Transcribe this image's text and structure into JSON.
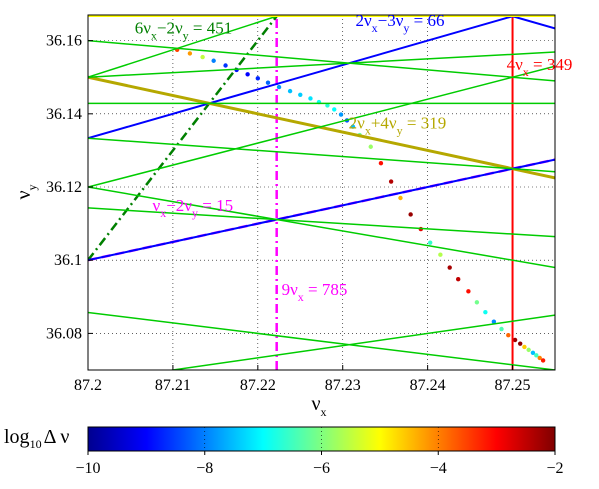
{
  "chart_data": {
    "type": "scatter",
    "xlim": [
      87.2,
      87.255
    ],
    "ylim": [
      36.07,
      36.167
    ],
    "x_ticks": [
      "87.2",
      "87.21",
      "87.22",
      "87.23",
      "87.24",
      "87.25"
    ],
    "y_ticks": [
      "36.08",
      "36.1",
      "36.12",
      "36.14",
      "36.16"
    ],
    "x_tick_values": [
      87.2,
      87.21,
      87.22,
      87.23,
      87.24,
      87.25
    ],
    "y_tick_values": [
      36.08,
      36.1,
      36.12,
      36.14,
      36.16
    ],
    "xlabel": {
      "main": "ν",
      "sub": "x"
    },
    "ylabel": {
      "main": "ν",
      "sub": "y"
    },
    "grid": true,
    "colorbar": {
      "label_pre": "log",
      "label_sub": "10",
      "label_post": "Δ ν",
      "ticks": [
        "−10",
        "−8",
        "−6",
        "−4",
        "−2"
      ],
      "tick_values": [
        -10,
        -8,
        -6,
        -4,
        -2
      ],
      "range": [
        -10,
        -2
      ],
      "colormap": "jet"
    },
    "resonance_lines": [
      {
        "a": 4,
        "b": 0,
        "c": 349,
        "color": "#ff0000",
        "style": "solid",
        "width": 2
      },
      {
        "a": 9,
        "b": 0,
        "c": 785,
        "color": "#ff00ff",
        "style": "dashdot",
        "width": 2.5
      },
      {
        "a": 1,
        "b": -2,
        "c": 15,
        "color": "#ff00ff",
        "style": "dashed",
        "width": 2.5
      },
      {
        "a": 6,
        "b": -2,
        "c": 451,
        "color": "#007f00",
        "style": "dashdot",
        "width": 2.5
      },
      {
        "a": 2,
        "b": -3,
        "c": 66,
        "color": "#0000ff",
        "style": "solid",
        "width": 2
      },
      {
        "a": 2,
        "b": 4,
        "c": 319,
        "color": "#b5a800",
        "style": "solid",
        "width": 3
      },
      {
        "a": 2,
        "b": -4,
        "c": 30,
        "color": "#0000ff",
        "style": "solid",
        "width": 2
      },
      {
        "a": 2,
        "b": 3,
        "c": 283,
        "color": "#0000ff",
        "style": "solid",
        "width": 2
      },
      {
        "a": 1,
        "b": 4,
        "c": 232,
        "color": "#00cc00",
        "style": "solid",
        "width": 1.5
      },
      {
        "a": 1,
        "b": 6,
        "c": 304,
        "color": "#00cc00",
        "style": "solid",
        "width": 1.5
      },
      {
        "a": 2,
        "b": -6,
        "c": -42,
        "color": "#00cc00",
        "style": "solid",
        "width": 1.5
      },
      {
        "a": 1,
        "b": 5,
        "c": 268,
        "color": "#00cc00",
        "style": "solid",
        "width": 1.5
      },
      {
        "a": 2,
        "b": 5,
        "c": 355,
        "color": "#00cc00",
        "style": "solid",
        "width": 1.5
      },
      {
        "a": 0,
        "b": 7,
        "c": 253,
        "color": "#00cc00",
        "style": "solid",
        "width": 1.5
      },
      {
        "a": 3,
        "b": -5,
        "c": 81,
        "color": "#00cc00",
        "style": "solid",
        "width": 1.5
      },
      {
        "a": 2,
        "b": 7,
        "c": 427,
        "color": "#00cc00",
        "style": "solid",
        "width": 1.5
      },
      {
        "a": 1,
        "b": -8,
        "c": -202,
        "color": "#00cc00",
        "style": "solid",
        "width": 1.5
      },
      {
        "a": 1,
        "b": 7,
        "c": 340,
        "color": "#00cc00",
        "style": "solid",
        "width": 1.5
      },
      {
        "a": 3,
        "b": -4,
        "c": 117,
        "color": "#00cc00",
        "style": "solid",
        "width": 1.5
      },
      {
        "a": 0,
        "b": 6,
        "c": 217,
        "color": "#ffff00",
        "style": "solid",
        "width": 1.5
      },
      {
        "a": 1,
        "b": -5,
        "c": -93,
        "color": "#ffff00",
        "style": "solid",
        "width": 1.5
      },
      {
        "a": 2,
        "b": 2,
        "c": 247,
        "color": "#ffff00",
        "style": "solid",
        "width": 1.5
      },
      {
        "a": 2,
        "b": -2,
        "c": 102,
        "color": "#ffff00",
        "style": "solid",
        "width": 1.5
      },
      {
        "a": 1,
        "b": -4,
        "c": -57,
        "color": "#ffff00",
        "style": "solid",
        "width": 1.5
      },
      {
        "a": 1,
        "b": 3,
        "c": 196,
        "color": "#ffff00",
        "style": "solid",
        "width": 1.5
      },
      {
        "a": 1,
        "b": 4,
        "c": 232,
        "color": "#ffff00",
        "style": "solid",
        "width": 1.5
      }
    ],
    "annotations": [
      {
        "parts": [
          "6ν",
          "x",
          "−2ν",
          "y",
          " = 451"
        ],
        "color": "#007f00",
        "x": 87.2055,
        "y": 36.162
      },
      {
        "parts": [
          "2ν",
          "x",
          "−3ν",
          "y",
          " = 66"
        ],
        "color": "#0000ff",
        "x": 87.2315,
        "y": 36.164
      },
      {
        "parts": [
          "4ν",
          "x",
          " = 349",
          "",
          ""
        ],
        "color": "#ff0000",
        "x": 87.2493,
        "y": 36.152
      },
      {
        "parts": [
          "2ν",
          "x",
          "+4ν",
          "y",
          " = 319"
        ],
        "color": "#b5a800",
        "x": 87.2307,
        "y": 36.136
      },
      {
        "parts": [
          "ν",
          "x",
          "−2ν",
          "y",
          " = 15"
        ],
        "color": "#ff00ff",
        "x": 87.2076,
        "y": 36.1135
      },
      {
        "parts": [
          "9ν",
          "x",
          " = 785",
          "",
          ""
        ],
        "color": "#ff00ff",
        "x": 87.2228,
        "y": 36.0905
      }
    ],
    "scatter_series": [
      {
        "name": "",
        "x": [
          87.2105,
          87.212,
          87.2135,
          87.2148,
          87.2162,
          87.2175,
          87.2188,
          87.22,
          87.2212,
          87.2225,
          87.2238,
          87.225,
          87.2262,
          87.2272,
          87.2282,
          87.229,
          87.2298,
          87.2305,
          87.2312,
          87.232,
          87.2333,
          87.2345,
          87.2357,
          87.2368,
          87.238,
          87.2392,
          87.2403,
          87.2415,
          87.2426,
          87.2436,
          87.2448,
          87.2458,
          87.2468,
          87.2478,
          87.2487,
          87.2495,
          87.2503,
          87.2509,
          87.2514,
          87.2519,
          87.2524,
          87.2528,
          87.2532,
          87.2536
        ],
        "y": [
          36.1575,
          36.1565,
          36.1555,
          36.1545,
          36.1532,
          36.152,
          36.1508,
          36.1497,
          36.1485,
          36.1473,
          36.1462,
          36.1452,
          36.1442,
          36.1432,
          36.1423,
          36.1412,
          36.1398,
          36.1382,
          36.1365,
          36.1342,
          36.131,
          36.1265,
          36.1215,
          36.117,
          36.1125,
          36.1085,
          36.1048,
          36.1015,
          36.098,
          36.0948,
          36.0915,
          36.0885,
          36.0858,
          36.0832,
          36.0812,
          36.0795,
          36.0782,
          36.0772,
          36.0763,
          36.0755,
          36.0747,
          36.074,
          36.0733,
          36.0726
        ],
        "logdv": [
          -3.5,
          -4.2,
          -5.5,
          -8.0,
          -8.6,
          -8.9,
          -9.0,
          -8.7,
          -8.2,
          -7.8,
          -7.5,
          -7.4,
          -7.2,
          -6.9,
          -6.7,
          -7.0,
          -7.8,
          -8.3,
          -7.5,
          -6.2,
          -5.8,
          -3.1,
          -2.4,
          -4.4,
          -2.2,
          -2.8,
          -6.6,
          -5.6,
          -2.3,
          -2.5,
          -3.1,
          -6.1,
          -6.9,
          -7.9,
          -6.4,
          -3.8,
          -2.2,
          -2.1,
          -4.6,
          -5.8,
          -7.5,
          -6.5,
          -4.0,
          -3.2
        ]
      }
    ]
  }
}
